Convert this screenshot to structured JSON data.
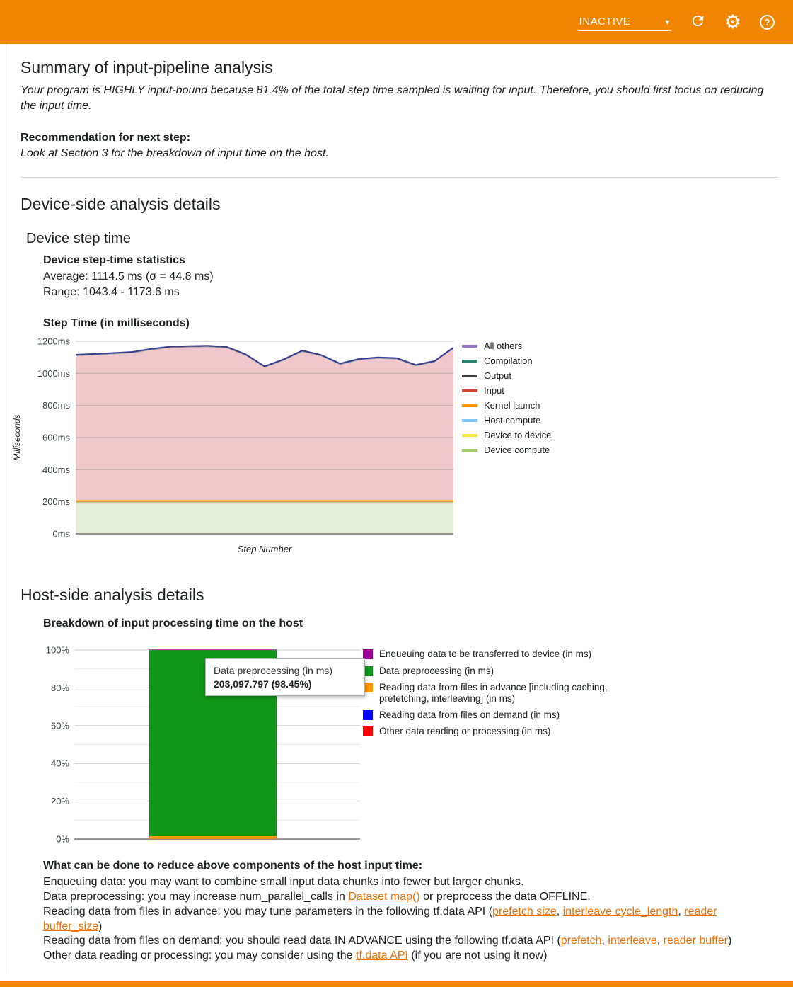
{
  "colors": {
    "accent": "#f28500",
    "link": "#e8710a"
  },
  "header": {
    "status": "INACTIVE"
  },
  "summary": {
    "title": "Summary of input-pipeline analysis",
    "body": "Your program is HIGHLY input-bound because 81.4% of the total step time sampled is waiting for input. Therefore, you should first focus on reducing the input time.",
    "recommendation_label": "Recommendation for next step:",
    "recommendation": "Look at Section 3 for the breakdown of input time on the host."
  },
  "device": {
    "heading": "Device-side analysis details",
    "subheading": "Device step time",
    "stats_title": "Device step-time statistics",
    "average": "Average: 1114.5 ms (σ = 44.8 ms)",
    "range": "Range: 1043.4 - 1173.6 ms",
    "chart_title": "Step Time (in milliseconds)"
  },
  "host": {
    "heading": "Host-side analysis details",
    "chart_title": "Breakdown of input processing time on the host",
    "tooltip": {
      "title": "Data preprocessing (in ms)",
      "value": "203,097.797 (98.45%)"
    }
  },
  "advice": {
    "title": "What can be done to reduce above components of the host input time:",
    "lines": [
      {
        "segments": [
          {
            "t": "Enqueuing data: you may want to combine small input data chunks into fewer but larger chunks."
          }
        ]
      },
      {
        "segments": [
          {
            "t": "Data preprocessing: you may increase num_parallel_calls in "
          },
          {
            "t": "Dataset map()",
            "link": true
          },
          {
            "t": " or preprocess the data OFFLINE."
          }
        ]
      },
      {
        "segments": [
          {
            "t": "Reading data from files in advance: you may tune parameters in the following tf.data API ("
          },
          {
            "t": "prefetch size",
            "link": true
          },
          {
            "t": ", "
          },
          {
            "t": "interleave cycle_length",
            "link": true
          },
          {
            "t": ", "
          },
          {
            "t": "reader buffer_size",
            "link": true
          },
          {
            "t": ")"
          }
        ]
      },
      {
        "segments": [
          {
            "t": "Reading data from files on demand: you should read data IN ADVANCE using the following tf.data API ("
          },
          {
            "t": "prefetch",
            "link": true
          },
          {
            "t": ", "
          },
          {
            "t": "interleave",
            "link": true
          },
          {
            "t": ", "
          },
          {
            "t": "reader buffer",
            "link": true
          },
          {
            "t": ")"
          }
        ]
      },
      {
        "segments": [
          {
            "t": "Other data reading or processing: you may consider using the "
          },
          {
            "t": "tf.data API",
            "link": true
          },
          {
            "t": " (if you are not using it now)"
          }
        ]
      }
    ]
  },
  "chart_data": [
    {
      "type": "area",
      "title": "Step Time (in milliseconds)",
      "xlabel": "Step Number",
      "ylabel": "Milliseconds",
      "ylim": [
        0,
        1200
      ],
      "yticks": [
        "0ms",
        "200ms",
        "400ms",
        "600ms",
        "800ms",
        "1000ms",
        "1200ms"
      ],
      "x": [
        1,
        2,
        3,
        4,
        5,
        6,
        7,
        8,
        9,
        10,
        11,
        12,
        13,
        14,
        15,
        16,
        17,
        18,
        19,
        20,
        21
      ],
      "series": [
        {
          "name": "Device compute",
          "color": "#e6f0d8",
          "edge": "#bccf8f",
          "values": [
            193,
            193,
            193,
            193,
            193,
            193,
            193,
            193,
            193,
            193,
            193,
            193,
            193,
            193,
            193,
            193,
            193,
            193,
            193,
            193,
            193
          ]
        },
        {
          "name": "Device to device",
          "color": "#f0e442",
          "values": [
            4,
            4,
            4,
            4,
            4,
            4,
            4,
            4,
            4,
            4,
            4,
            4,
            4,
            4,
            4,
            4,
            4,
            4,
            4,
            4,
            4
          ]
        },
        {
          "name": "Host compute",
          "color": "#bfe0fb",
          "values": [
            2,
            2,
            2,
            2,
            2,
            2,
            2,
            2,
            2,
            2,
            2,
            2,
            2,
            2,
            2,
            2,
            2,
            2,
            2,
            2,
            2
          ]
        },
        {
          "name": "Kernel launch",
          "color": "#ff9900",
          "values": [
            12,
            12,
            12,
            12,
            12,
            12,
            12,
            12,
            12,
            12,
            12,
            12,
            12,
            12,
            12,
            12,
            12,
            12,
            12,
            12,
            12
          ]
        },
        {
          "name": "Input",
          "color": "#f0c8cb",
          "values": [
            897,
            902,
            908,
            915,
            934,
            948,
            951,
            953,
            946,
            900,
            825,
            868,
            923,
            896,
            842,
            871,
            881,
            876,
            834,
            858,
            942
          ]
        },
        {
          "name": "Output",
          "color": "#8a8a8a",
          "values": [
            2,
            2,
            2,
            2,
            2,
            2,
            2,
            2,
            2,
            2,
            2,
            2,
            2,
            2,
            2,
            2,
            2,
            2,
            2,
            2,
            2
          ]
        },
        {
          "name": "Compilation",
          "color": "#2d7f6e",
          "values": [
            2,
            2,
            2,
            2,
            2,
            2,
            2,
            2,
            2,
            2,
            2,
            2,
            2,
            2,
            2,
            2,
            2,
            2,
            2,
            2,
            2
          ]
        },
        {
          "name": "All others",
          "color": "#b9a7e0",
          "edge": "#3b3b94",
          "values": [
            4,
            4,
            4,
            4,
            4,
            4,
            4,
            4,
            4,
            4,
            4,
            4,
            4,
            4,
            4,
            4,
            4,
            4,
            4,
            4,
            4
          ]
        }
      ],
      "legend": [
        {
          "label": "All others",
          "color": "#9575cd"
        },
        {
          "label": "Compilation",
          "color": "#2d7f6e"
        },
        {
          "label": "Output",
          "color": "#424242"
        },
        {
          "label": "Input",
          "color": "#d9453d"
        },
        {
          "label": "Kernel launch",
          "color": "#ff9900"
        },
        {
          "label": "Host compute",
          "color": "#7ec8f7"
        },
        {
          "label": "Device to device",
          "color": "#f0e442"
        },
        {
          "label": "Device compute",
          "color": "#a8c973"
        }
      ]
    },
    {
      "type": "bar",
      "title": "Breakdown of input processing time on the host",
      "stacked_percent": true,
      "ylim": [
        0,
        100
      ],
      "yticks": [
        "0%",
        "20%",
        "40%",
        "60%",
        "80%",
        "100%"
      ],
      "segments": [
        {
          "label": "Other data reading or processing (in ms)",
          "color": "#ff0000",
          "percent": 0.02
        },
        {
          "label": "Reading data from files on demand (in ms)",
          "color": "#0000ff",
          "percent": 0.02
        },
        {
          "label": "Reading data from files in advance [including caching, prefetching, interleaving] (in ms)",
          "color": "#ff9900",
          "percent": 1.46
        },
        {
          "label": "Data preprocessing (in ms)",
          "color": "#109618",
          "percent": 98.45,
          "value_ms": "203,097.797"
        },
        {
          "label": "Enqueuing data to be transferred to device (in ms)",
          "color": "#990099",
          "percent": 0.05
        }
      ],
      "legend": [
        {
          "label": "Enqueuing data to be transferred to device (in ms)",
          "color": "#990099"
        },
        {
          "label": "Data preprocessing (in ms)",
          "color": "#109618"
        },
        {
          "label": "Reading data from files in advance [including caching, prefetching, interleaving] (in ms)",
          "color": "#ff9900"
        },
        {
          "label": "Reading data from files on demand (in ms)",
          "color": "#0000ff"
        },
        {
          "label": "Other data reading or processing (in ms)",
          "color": "#ff0000"
        }
      ]
    }
  ]
}
